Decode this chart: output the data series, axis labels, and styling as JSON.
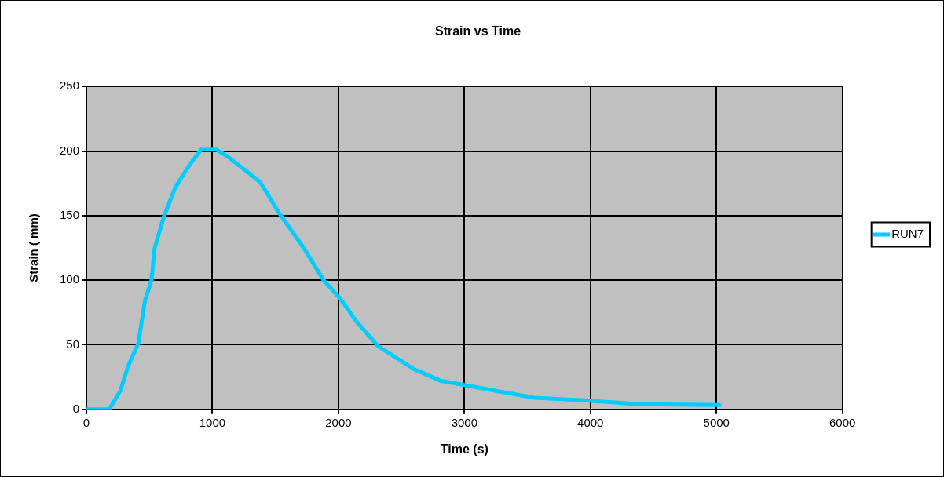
{
  "chart_data": {
    "type": "line",
    "title": "Strain vs Time",
    "xlabel": "Time (s)",
    "ylabel": "Strain ( mm)",
    "x": [
      0,
      180,
      268,
      333,
      412,
      464,
      516,
      542,
      614,
      706,
      810,
      908,
      1032,
      1118,
      1248,
      1379,
      1529,
      1725,
      1882,
      2013,
      2144,
      2314,
      2601,
      2817,
      2993,
      3294,
      3556,
      3948,
      4386,
      5026
    ],
    "series": [
      {
        "name": "RUN7",
        "color": "#00ccff",
        "values": [
          0,
          0,
          14,
          34,
          51,
          84,
          100,
          125,
          149,
          172,
          188,
          201,
          201,
          196,
          186,
          176,
          152,
          125,
          100,
          86,
          68,
          49,
          31,
          22,
          19,
          13.5,
          9,
          7,
          4,
          3.4
        ]
      }
    ],
    "xlim": [
      0,
      6000
    ],
    "xticks": [
      0,
      1000,
      2000,
      3000,
      4000,
      5000,
      6000
    ],
    "ylim": [
      0,
      250
    ],
    "yticks": [
      0,
      50,
      100,
      150,
      200,
      250
    ],
    "grid": true,
    "legend": "right",
    "marker": "none",
    "line_style": "solid"
  }
}
